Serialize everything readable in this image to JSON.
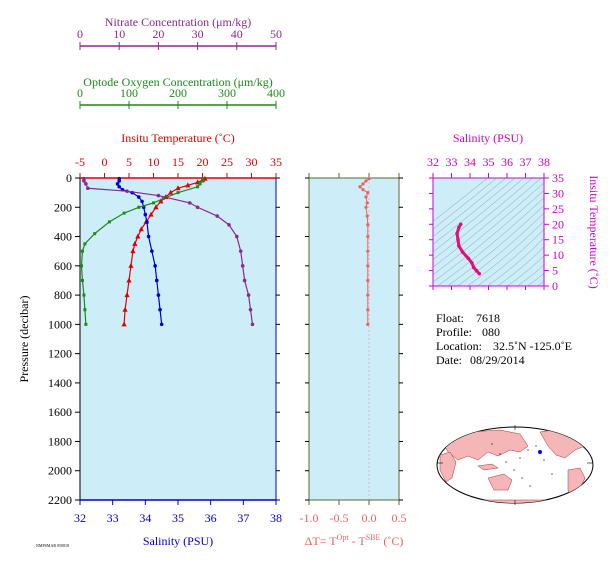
{
  "chart_data": [
    {
      "type": "line",
      "panel": "profile",
      "ylabel": "Pressure (decibar)",
      "ylim": [
        2200,
        0
      ],
      "yticks": [
        "0",
        "200",
        "400",
        "600",
        "800",
        "1000",
        "1200",
        "1400",
        "1600",
        "1800",
        "2000",
        "2200"
      ],
      "axes": {
        "nitrate": {
          "label": "Nitrate Concentration (μm/kg)",
          "range": [
            0,
            50
          ],
          "ticks": [
            "0",
            "10",
            "20",
            "30",
            "40",
            "50"
          ],
          "color": "#8b2a8b"
        },
        "oxygen": {
          "label": "Optode Oxygen Concentration (μm/kg)",
          "range": [
            0,
            400
          ],
          "ticks": [
            "0",
            "100",
            "200",
            "300",
            "400"
          ],
          "color": "#1a8a1a"
        },
        "temperature": {
          "label": "Insitu Temperature (˚C)",
          "range": [
            -5,
            35
          ],
          "ticks": [
            "-5",
            "0",
            "5",
            "10",
            "15",
            "20",
            "25",
            "30",
            "35"
          ],
          "color": "#e00000"
        },
        "salinity": {
          "label": "Salinity (PSU)",
          "range": [
            32,
            38
          ],
          "ticks": [
            "32",
            "33",
            "34",
            "35",
            "36",
            "37",
            "38"
          ],
          "color": "#0000cc"
        }
      },
      "series": [
        {
          "axis": "temperature",
          "color": "#e00000",
          "points": [
            [
              20.5,
              5
            ],
            [
              20,
              15
            ],
            [
              19,
              30
            ],
            [
              17,
              50
            ],
            [
              15,
              70
            ],
            [
              13.5,
              100
            ],
            [
              12.5,
              130
            ],
            [
              11.5,
              160
            ],
            [
              10.5,
              200
            ],
            [
              9.5,
              250
            ],
            [
              8.5,
              300
            ],
            [
              7.5,
              350
            ],
            [
              6.8,
              400
            ],
            [
              6.2,
              450
            ],
            [
              5.8,
              500
            ],
            [
              5.4,
              600
            ],
            [
              5,
              700
            ],
            [
              4.6,
              800
            ],
            [
              4.2,
              900
            ],
            [
              4,
              1000
            ]
          ]
        },
        {
          "axis": "salinity",
          "color": "#0000cc",
          "points": [
            [
              33.2,
              5
            ],
            [
              33.2,
              20
            ],
            [
              33.15,
              40
            ],
            [
              33.2,
              60
            ],
            [
              33.3,
              80
            ],
            [
              33.6,
              100
            ],
            [
              33.8,
              130
            ],
            [
              33.9,
              160
            ],
            [
              33.95,
              200
            ],
            [
              34.0,
              250
            ],
            [
              34.05,
              300
            ],
            [
              34.1,
              400
            ],
            [
              34.2,
              500
            ],
            [
              34.3,
              600
            ],
            [
              34.35,
              700
            ],
            [
              34.4,
              800
            ],
            [
              34.45,
              900
            ],
            [
              34.5,
              1000
            ]
          ]
        },
        {
          "axis": "oxygen",
          "color": "#1a8a1a",
          "points": [
            [
              250,
              5
            ],
            [
              250,
              20
            ],
            [
              245,
              40
            ],
            [
              240,
              60
            ],
            [
              200,
              100
            ],
            [
              170,
              140
            ],
            [
              150,
              170
            ],
            [
              120,
              200
            ],
            [
              90,
              240
            ],
            [
              60,
              300
            ],
            [
              30,
              380
            ],
            [
              10,
              450
            ],
            [
              5,
              500
            ],
            [
              3,
              600
            ],
            [
              5,
              700
            ],
            [
              8,
              800
            ],
            [
              10,
              900
            ],
            [
              12,
              1000
            ]
          ]
        },
        {
          "axis": "nitrate",
          "color": "#8b2a8b",
          "points": [
            [
              1,
              5
            ],
            [
              1,
              20
            ],
            [
              1.5,
              40
            ],
            [
              2,
              70
            ],
            [
              12,
              90
            ],
            [
              20,
              120
            ],
            [
              28,
              170
            ],
            [
              30,
              200
            ],
            [
              35,
              260
            ],
            [
              38,
              320
            ],
            [
              40,
              400
            ],
            [
              41,
              500
            ],
            [
              41.5,
              600
            ],
            [
              42,
              700
            ],
            [
              43,
              800
            ],
            [
              43.5,
              900
            ],
            [
              44,
              1000
            ]
          ]
        }
      ]
    },
    {
      "type": "line",
      "panel": "delta_t",
      "xlabel": "ΔT= T",
      "xlabel_sup1": "Opt",
      "xlabel_mid": " - T",
      "xlabel_sup2": "SBE",
      "xlabel_end": " (˚C)",
      "xlim": [
        -1.0,
        0.5
      ],
      "xticks": [
        "-1.0",
        "-0.5",
        "0.0",
        "0.5"
      ],
      "series": [
        {
          "color": "#f06060",
          "points": [
            [
              0.0,
              5
            ],
            [
              -0.05,
              20
            ],
            [
              -0.1,
              40
            ],
            [
              -0.15,
              60
            ],
            [
              -0.1,
              80
            ],
            [
              -0.02,
              100
            ],
            [
              -0.05,
              130
            ],
            [
              -0.03,
              170
            ],
            [
              -0.05,
              200
            ],
            [
              -0.03,
              260
            ],
            [
              -0.02,
              320
            ],
            [
              -0.02,
              400
            ],
            [
              -0.02,
              500
            ],
            [
              -0.02,
              600
            ],
            [
              -0.02,
              700
            ],
            [
              -0.02,
              800
            ],
            [
              -0.02,
              900
            ],
            [
              -0.02,
              1000
            ]
          ]
        }
      ]
    },
    {
      "type": "scatter",
      "panel": "ts",
      "title": "Salinity (PSU)",
      "ylabel": "Insitu Temperature (˚C)",
      "xlim": [
        32,
        38
      ],
      "ylim": [
        0,
        35
      ],
      "xticks": [
        "32",
        "33",
        "34",
        "35",
        "36",
        "37",
        "38"
      ],
      "yticks": [
        "0",
        "5",
        "10",
        "15",
        "20",
        "25",
        "30",
        "35"
      ],
      "series": [
        {
          "color": "#e0107a",
          "points": [
            [
              33.5,
              20
            ],
            [
              33.4,
              19
            ],
            [
              33.3,
              17
            ],
            [
              33.35,
              15
            ],
            [
              33.4,
              13
            ],
            [
              33.6,
              11
            ],
            [
              33.9,
              9
            ],
            [
              34.1,
              7.5
            ],
            [
              34.2,
              6
            ],
            [
              34.35,
              5
            ],
            [
              34.5,
              4
            ]
          ]
        }
      ]
    }
  ],
  "info": {
    "float_label": "Float:",
    "float_value": "7618",
    "profile_label": "Profile:",
    "profile_value": "080",
    "location_label": "Location:",
    "location_value": "32.5˚N  -125.0˚E",
    "date_label": "Date:",
    "date_value": "08/29/2014"
  },
  "footer_stamp": "NMPSMAR 050818"
}
